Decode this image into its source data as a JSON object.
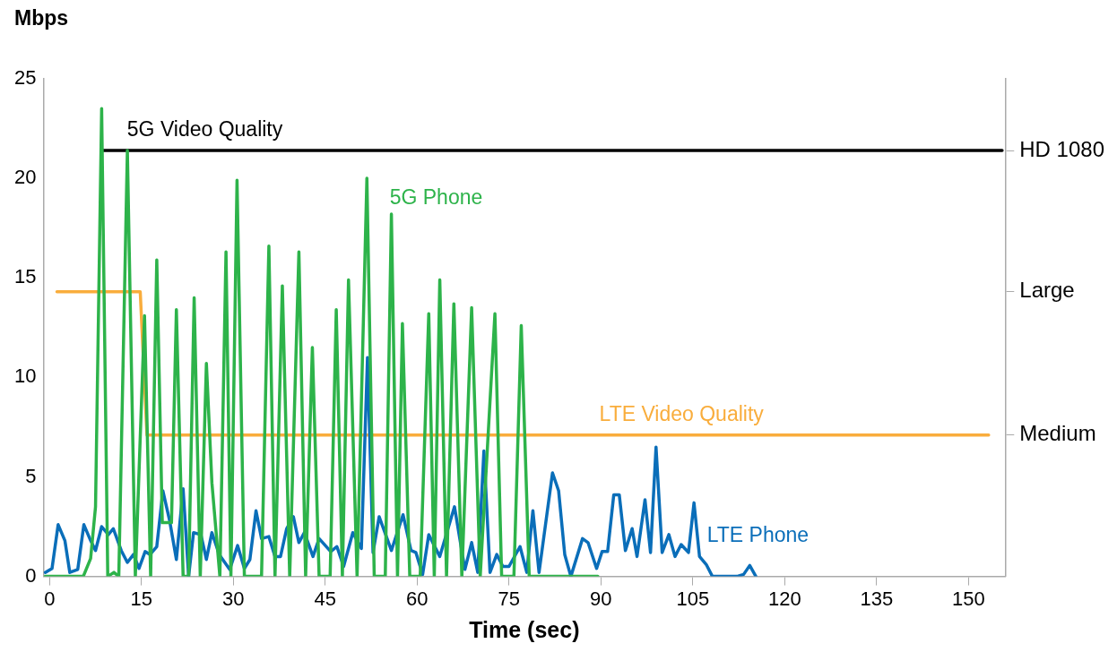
{
  "chart_data": {
    "type": "line",
    "xlabel": "Time (sec)",
    "ylabel": "Mbps",
    "xlim": [
      -1,
      156
    ],
    "xticks": [
      0,
      15,
      30,
      45,
      60,
      75,
      90,
      105,
      120,
      135,
      150
    ],
    "ylim": [
      0,
      25
    ],
    "yticks": [
      0,
      5,
      10,
      15,
      20,
      25
    ],
    "annotations": [
      "HD 1080",
      "Large",
      "Medium"
    ],
    "grid": false,
    "legend": false,
    "marker": "none",
    "line_style": "solid",
    "series": [
      {
        "name": "5G Phone",
        "color": "#2db34a",
        "x": [
          -0.7,
          5.5,
          6.7,
          7.5,
          8.5,
          9.5,
          10.5,
          11.3,
          12.7,
          14,
          15.5,
          16.5,
          17.5,
          18.4,
          19.9,
          20.7,
          21.8,
          22.7,
          23.6,
          24.6,
          25.6,
          26.5,
          27.8,
          28.8,
          29.6,
          30.6,
          31.8,
          34.6,
          35.8,
          36.8,
          38,
          39.2,
          40.7,
          41.8,
          42.9,
          44,
          45.8,
          46.8,
          47.8,
          48.8,
          50.2,
          51.8,
          53,
          54.8,
          55.8,
          56.8,
          57.6,
          58.8,
          60.5,
          61.9,
          62.8,
          63.7,
          64.8,
          66,
          67.3,
          68.9,
          70.3,
          72.7,
          73.8,
          75.8,
          77,
          78.3,
          89.5
        ],
        "values": [
          0,
          0,
          0.9,
          3.5,
          23.5,
          0,
          0.2,
          0,
          21.4,
          0,
          13.1,
          0,
          15.9,
          2.7,
          2.7,
          13.4,
          0,
          0,
          14,
          0,
          10.7,
          4.7,
          0,
          16.3,
          0,
          19.9,
          0,
          0,
          16.6,
          0,
          14.6,
          0,
          16.3,
          0,
          11.5,
          0,
          0,
          13.4,
          0,
          14.9,
          0,
          20,
          0,
          0,
          18.2,
          0,
          12.7,
          0,
          0,
          13.2,
          0,
          14.9,
          0,
          13.7,
          0,
          13.5,
          0,
          13.2,
          0,
          0,
          12.6,
          0,
          0
        ]
      },
      {
        "name": "LTE Phone",
        "color": "#0a6eb9",
        "x": [
          -0.7,
          0.4,
          1.4,
          2.5,
          3.3,
          4.6,
          5.6,
          6.7,
          7.5,
          8.5,
          9.6,
          10.4,
          11.7,
          12.7,
          13.7,
          14.6,
          15.6,
          16.4,
          17.5,
          18.5,
          19.6,
          20.7,
          21.8,
          22.7,
          23.5,
          24.7,
          25.6,
          26.5,
          27.7,
          29.4,
          30.7,
          31.8,
          32.7,
          33.7,
          34.6,
          35.8,
          36.8,
          37.7,
          38.7,
          39.8,
          40.7,
          41.6,
          43,
          44,
          45.9,
          46.9,
          48,
          49.5,
          50.9,
          51.9,
          52.8,
          53.8,
          55.8,
          57.7,
          59,
          59.8,
          60.9,
          61.9,
          63.7,
          66.1,
          67.8,
          68.9,
          69.9,
          70.9,
          71.9,
          73,
          74,
          75,
          76.8,
          77.9,
          78.9,
          79.9,
          82.1,
          83.1,
          84.1,
          85.1,
          87,
          87.9,
          89.3,
          90.2,
          91.1,
          92.1,
          93,
          94,
          95.1,
          95.9,
          97.2,
          98.1,
          99,
          100,
          101.1,
          102.1,
          103.1,
          104.3,
          105.2,
          106.1,
          107.2,
          108.2,
          112.2,
          113.3,
          114.3,
          115.3
        ],
        "values": [
          0.2,
          0.4,
          2.6,
          1.8,
          0.2,
          0.35,
          2.6,
          1.8,
          1.3,
          2.5,
          2.1,
          2.4,
          1.3,
          0.7,
          1.1,
          0.4,
          1.25,
          1.1,
          1.5,
          4.3,
          2.8,
          0.85,
          4.4,
          0,
          2.2,
          2.1,
          0.85,
          2.2,
          1.1,
          0.35,
          1.55,
          0.4,
          0.85,
          3.3,
          1.9,
          2,
          1,
          1,
          2.4,
          3,
          1.7,
          2.2,
          1,
          1.9,
          1.25,
          1.5,
          0.5,
          2.2,
          1.4,
          11,
          1.2,
          3,
          1.3,
          3.1,
          1.3,
          1.2,
          0.1,
          2.1,
          1,
          3.5,
          0.35,
          1.7,
          0.2,
          6.3,
          0.2,
          1.1,
          0.5,
          0.5,
          1.5,
          0.2,
          3.3,
          0.2,
          5.2,
          4.3,
          1.1,
          0,
          1.9,
          1.7,
          0.4,
          1.25,
          1.25,
          4.1,
          4.1,
          1.3,
          2.4,
          1,
          3.85,
          1.2,
          6.5,
          1.2,
          2.1,
          1,
          1.6,
          1.2,
          3.7,
          1,
          0.6,
          0,
          0,
          0.1,
          0.55,
          0
        ]
      },
      {
        "name": "5G Video Quality",
        "color": "#000000",
        "x": [
          8.5,
          155.5
        ],
        "values": [
          21.4,
          21.4
        ]
      },
      {
        "name": "LTE Video Quality",
        "color": "#f9ad3c",
        "x": [
          1.2,
          14.8,
          15.9,
          153.3
        ],
        "values": [
          14.3,
          14.3,
          7.1,
          7.1
        ]
      }
    ]
  }
}
